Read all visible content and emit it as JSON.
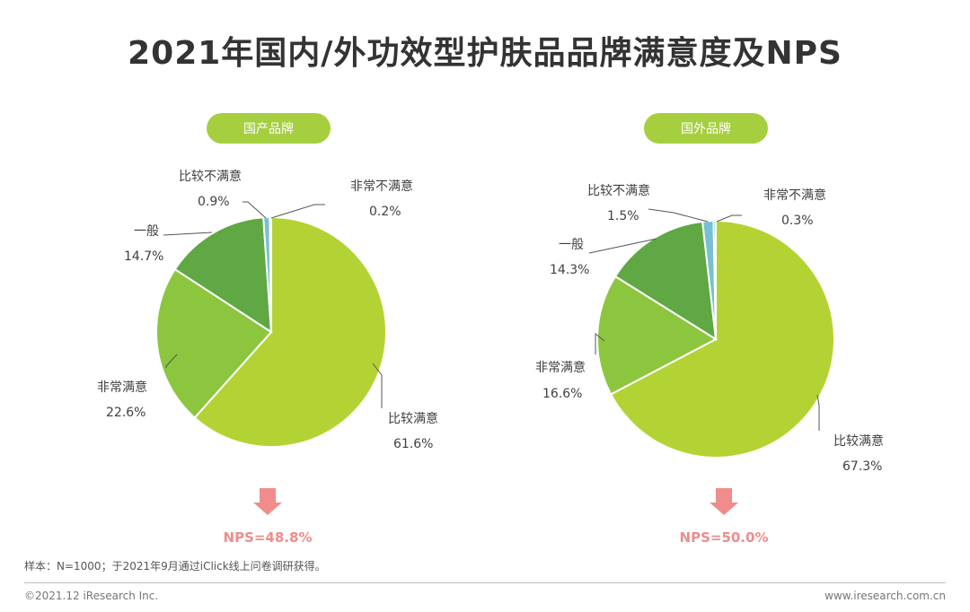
{
  "title": "2021年国内/外功效型护肤品品牌满意度及NPS",
  "colors": {
    "pill": "#a5cf3f",
    "slices": [
      "#b3d334",
      "#8cc63f",
      "#5fa844",
      "#78bfd3",
      "#29b5e8"
    ],
    "nps": "#f08c8c",
    "leader": "#555555"
  },
  "chart_data": [
    {
      "type": "pie",
      "title": "国产品牌",
      "slices": [
        {
          "label": "比较满意",
          "value": 61.6,
          "text": "61.6%"
        },
        {
          "label": "非常满意",
          "value": 22.6,
          "text": "22.6%"
        },
        {
          "label": "一般",
          "value": 14.7,
          "text": "14.7%"
        },
        {
          "label": "比较不满意",
          "value": 0.9,
          "text": "0.9%"
        },
        {
          "label": "非常不满意",
          "value": 0.2,
          "text": "0.2%"
        }
      ],
      "nps": "NPS=48.8%"
    },
    {
      "type": "pie",
      "title": "国外品牌",
      "slices": [
        {
          "label": "比较满意",
          "value": 67.3,
          "text": "67.3%"
        },
        {
          "label": "非常满意",
          "value": 16.6,
          "text": "16.6%"
        },
        {
          "label": "一般",
          "value": 14.3,
          "text": "14.3%"
        },
        {
          "label": "比较不满意",
          "value": 1.5,
          "text": "1.5%"
        },
        {
          "label": "非常不满意",
          "value": 0.3,
          "text": "0.3%"
        }
      ],
      "nps": "NPS=50.0%"
    }
  ],
  "footer": {
    "sample": "样本：N=1000；于2021年9月通过iClick线上问卷调研获得。",
    "copyright": "©2021.12 iResearch Inc.",
    "website": "www.iresearch.com.cn"
  }
}
